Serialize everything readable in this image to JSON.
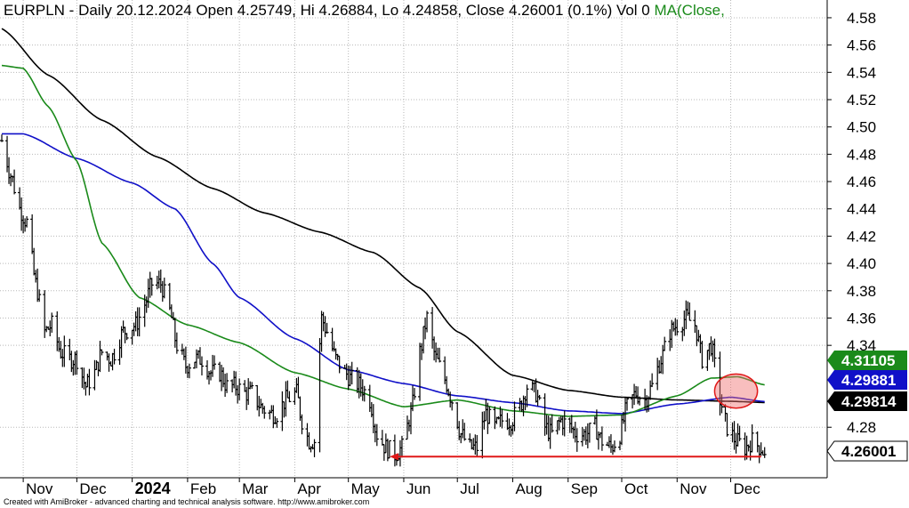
{
  "header": {
    "title": "EURPLN - Daily 20.12.2024 Open 4.25749, Hi 4.26884, Lo 4.24858, Close 4.26001 (0.1%) Vol 0",
    "ma_label": "MA(Close,"
  },
  "footer": {
    "credit": "Created with AmiBroker - advanced charting and technical analysis software. http://www.amibroker.com"
  },
  "colors": {
    "price": "#000000",
    "ma_black": "#000000",
    "ma_blue": "#1010c8",
    "ma_green": "#1a8a1a",
    "annotation_arrow": "#e01818",
    "annotation_ellipse": "#e01818",
    "grid": "#b8b8b8",
    "label_green_bg": "#1a8a1a",
    "label_blue_bg": "#1010c8",
    "label_black_bg": "#000000"
  },
  "chart_data": {
    "type": "line",
    "x_axis": {
      "tick_labels": [
        "Nov",
        "Dec",
        "2024",
        "Feb",
        "Mar",
        "Apr",
        "May",
        "Jun",
        "Jul",
        "Aug",
        "Sep",
        "Oct",
        "Nov",
        "Dec"
      ],
      "bold_tick": "2024"
    },
    "y_axis": {
      "ylim": [
        4.243,
        4.593
      ],
      "ticks": [
        4.58,
        4.56,
        4.54,
        4.52,
        4.5,
        4.48,
        4.46,
        4.44,
        4.42,
        4.4,
        4.38,
        4.36,
        4.34,
        4.28
      ],
      "tick_labels": [
        "4.58",
        "4.56",
        "4.54",
        "4.52",
        "4.50",
        "4.48",
        "4.46",
        "4.44",
        "4.42",
        "4.40",
        "4.38",
        "4.36",
        "4.34",
        "4.28"
      ],
      "position": "right",
      "grid": true
    },
    "value_labels": [
      {
        "text": "4.31105",
        "series": "ma_green",
        "value": 4.31105
      },
      {
        "text": "4.29881",
        "series": "ma_blue",
        "value": 4.29881
      },
      {
        "text": "4.29814",
        "series": "ma_black",
        "value": 4.29814
      },
      {
        "text": "4.26001",
        "series": "price",
        "value": 4.26001
      }
    ],
    "series": [
      {
        "id": "price",
        "style": "ohlc",
        "points": [
          [
            "2023-10-20",
            4.49
          ],
          [
            "2023-10-25",
            4.465
          ],
          [
            "2023-10-30",
            4.44
          ],
          [
            "2023-11-03",
            4.43
          ],
          [
            "2023-11-08",
            4.385
          ],
          [
            "2023-11-13",
            4.35
          ],
          [
            "2023-11-17",
            4.355
          ],
          [
            "2023-11-22",
            4.335
          ],
          [
            "2023-11-27",
            4.33
          ],
          [
            "2023-12-01",
            4.33
          ],
          [
            "2023-12-06",
            4.31
          ],
          [
            "2023-12-11",
            4.32
          ],
          [
            "2023-12-15",
            4.335
          ],
          [
            "2023-12-20",
            4.33
          ],
          [
            "2023-12-27",
            4.35
          ],
          [
            "2024-01-03",
            4.355
          ],
          [
            "2024-01-08",
            4.37
          ],
          [
            "2024-01-12",
            4.385
          ],
          [
            "2024-01-17",
            4.385
          ],
          [
            "2024-01-22",
            4.365
          ],
          [
            "2024-01-26",
            4.34
          ],
          [
            "2024-01-31",
            4.325
          ],
          [
            "2024-02-05",
            4.33
          ],
          [
            "2024-02-09",
            4.33
          ],
          [
            "2024-02-14",
            4.32
          ],
          [
            "2024-02-19",
            4.32
          ],
          [
            "2024-02-23",
            4.31
          ],
          [
            "2024-02-28",
            4.31
          ],
          [
            "2024-03-04",
            4.305
          ],
          [
            "2024-03-08",
            4.305
          ],
          [
            "2024-03-13",
            4.295
          ],
          [
            "2024-03-18",
            4.29
          ],
          [
            "2024-03-22",
            4.29
          ],
          [
            "2024-03-27",
            4.3
          ],
          [
            "2024-04-02",
            4.305
          ],
          [
            "2024-04-05",
            4.285
          ],
          [
            "2024-04-09",
            4.27
          ],
          [
            "2024-04-12",
            4.27
          ],
          [
            "2024-04-16",
            4.36
          ],
          [
            "2024-04-19",
            4.35
          ],
          [
            "2024-04-24",
            4.33
          ],
          [
            "2024-04-29",
            4.32
          ],
          [
            "2024-05-03",
            4.315
          ],
          [
            "2024-05-08",
            4.31
          ],
          [
            "2024-05-13",
            4.3
          ],
          [
            "2024-05-17",
            4.275
          ],
          [
            "2024-05-22",
            4.265
          ],
          [
            "2024-05-27",
            4.26
          ],
          [
            "2024-05-31",
            4.265
          ],
          [
            "2024-06-05",
            4.29
          ],
          [
            "2024-06-10",
            4.335
          ],
          [
            "2024-06-14",
            4.36
          ],
          [
            "2024-06-19",
            4.33
          ],
          [
            "2024-06-24",
            4.315
          ],
          [
            "2024-06-28",
            4.3
          ],
          [
            "2024-07-03",
            4.275
          ],
          [
            "2024-07-08",
            4.265
          ],
          [
            "2024-07-12",
            4.265
          ],
          [
            "2024-07-17",
            4.29
          ],
          [
            "2024-07-22",
            4.28
          ],
          [
            "2024-07-26",
            4.285
          ],
          [
            "2024-07-31",
            4.285
          ],
          [
            "2024-08-05",
            4.295
          ],
          [
            "2024-08-09",
            4.31
          ],
          [
            "2024-08-14",
            4.305
          ],
          [
            "2024-08-19",
            4.28
          ],
          [
            "2024-08-23",
            4.275
          ],
          [
            "2024-08-28",
            4.285
          ],
          [
            "2024-09-02",
            4.28
          ],
          [
            "2024-09-06",
            4.275
          ],
          [
            "2024-09-11",
            4.275
          ],
          [
            "2024-09-16",
            4.28
          ],
          [
            "2024-09-20",
            4.27
          ],
          [
            "2024-09-25",
            4.265
          ],
          [
            "2024-09-30",
            4.275
          ],
          [
            "2024-10-04",
            4.295
          ],
          [
            "2024-10-09",
            4.305
          ],
          [
            "2024-10-14",
            4.3
          ],
          [
            "2024-10-18",
            4.31
          ],
          [
            "2024-10-23",
            4.33
          ],
          [
            "2024-10-28",
            4.35
          ],
          [
            "2024-11-01",
            4.355
          ],
          [
            "2024-11-06",
            4.36
          ],
          [
            "2024-11-11",
            4.355
          ],
          [
            "2024-11-15",
            4.33
          ],
          [
            "2024-11-20",
            4.34
          ],
          [
            "2024-11-25",
            4.3
          ],
          [
            "2024-11-29",
            4.28
          ],
          [
            "2024-12-04",
            4.27
          ],
          [
            "2024-12-09",
            4.265
          ],
          [
            "2024-12-13",
            4.27
          ],
          [
            "2024-12-18",
            4.265
          ],
          [
            "2024-12-20",
            4.26001
          ]
        ]
      },
      {
        "id": "ma_black",
        "style": "line",
        "points": [
          [
            "2023-10-20",
            4.572
          ],
          [
            "2023-11-15",
            4.538
          ],
          [
            "2023-12-15",
            4.505
          ],
          [
            "2024-01-15",
            4.478
          ],
          [
            "2024-02-15",
            4.455
          ],
          [
            "2024-03-15",
            4.437
          ],
          [
            "2024-04-15",
            4.423
          ],
          [
            "2024-05-15",
            4.408
          ],
          [
            "2024-06-10",
            4.382
          ],
          [
            "2024-07-01",
            4.35
          ],
          [
            "2024-08-01",
            4.318
          ],
          [
            "2024-09-01",
            4.307
          ],
          [
            "2024-10-01",
            4.302
          ],
          [
            "2024-11-01",
            4.3
          ],
          [
            "2024-12-01",
            4.299
          ],
          [
            "2024-12-20",
            4.29814
          ]
        ]
      },
      {
        "id": "ma_blue",
        "style": "line",
        "points": [
          [
            "2023-10-20",
            4.495
          ],
          [
            "2023-11-01",
            4.495
          ],
          [
            "2023-12-01",
            4.477
          ],
          [
            "2024-01-01",
            4.459
          ],
          [
            "2024-01-25",
            4.44
          ],
          [
            "2024-02-15",
            4.4
          ],
          [
            "2024-03-01",
            4.375
          ],
          [
            "2024-04-01",
            4.345
          ],
          [
            "2024-05-01",
            4.322
          ],
          [
            "2024-06-01",
            4.312
          ],
          [
            "2024-07-01",
            4.303
          ],
          [
            "2024-08-01",
            4.298
          ],
          [
            "2024-09-01",
            4.292
          ],
          [
            "2024-10-01",
            4.29
          ],
          [
            "2024-11-01",
            4.297
          ],
          [
            "2024-12-01",
            4.302
          ],
          [
            "2024-12-20",
            4.29881
          ]
        ]
      },
      {
        "id": "ma_green",
        "style": "line",
        "points": [
          [
            "2023-10-20",
            4.545
          ],
          [
            "2023-11-01",
            4.543
          ],
          [
            "2023-11-15",
            4.515
          ],
          [
            "2023-12-01",
            4.475
          ],
          [
            "2023-12-15",
            4.415
          ],
          [
            "2024-01-05",
            4.375
          ],
          [
            "2024-02-01",
            4.355
          ],
          [
            "2024-03-01",
            4.342
          ],
          [
            "2024-04-01",
            4.32
          ],
          [
            "2024-05-01",
            4.308
          ],
          [
            "2024-06-01",
            4.295
          ],
          [
            "2024-07-01",
            4.3
          ],
          [
            "2024-08-01",
            4.292
          ],
          [
            "2024-09-01",
            4.288
          ],
          [
            "2024-10-01",
            4.289
          ],
          [
            "2024-11-01",
            4.303
          ],
          [
            "2024-11-20",
            4.316
          ],
          [
            "2024-12-05",
            4.317
          ],
          [
            "2024-12-20",
            4.31105
          ]
        ]
      }
    ],
    "annotations": [
      {
        "type": "arrow",
        "direction": "left",
        "from": [
          "2024-12-18",
          4.2585
        ],
        "to": [
          "2024-05-24",
          4.2585
        ]
      },
      {
        "type": "ellipse",
        "center": [
          "2024-12-04",
          4.3065
        ],
        "radius_days": 12,
        "radius_value": 0.0125
      }
    ]
  }
}
